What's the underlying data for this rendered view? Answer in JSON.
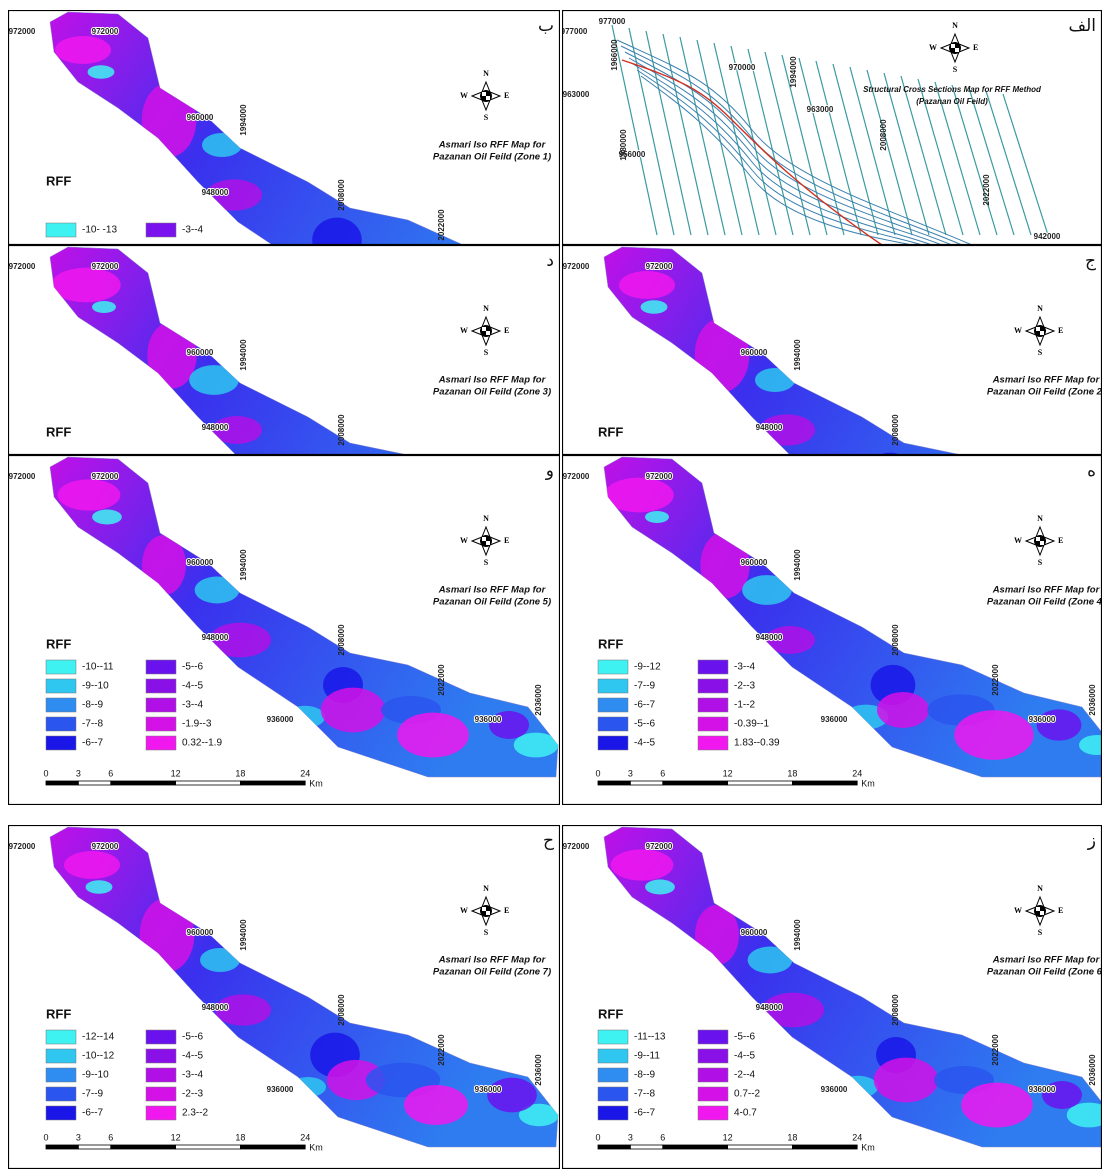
{
  "panels": [
    {
      "letter": "ب",
      "title": [
        "Asmari Iso RFF Map for",
        "Pazanan Oil Feild (Zone 1)"
      ],
      "compass": [
        "N",
        "S",
        "W",
        "E"
      ],
      "coords": [
        "972000",
        "972000",
        "960000",
        "1994000",
        "948000",
        "2008000",
        "2022000"
      ],
      "legend": {
        "title": "RFF",
        "items": [
          {
            "label": "-10- -13",
            "color": "#3ef2f2"
          },
          {
            "label": "-3--4",
            "color": "#7a12ee"
          }
        ]
      }
    },
    {
      "letter": "الف",
      "title": [
        "Structural Cross Sections Map for RFF Method",
        "(Pazanan Oil Feild)"
      ],
      "compass": [
        "N",
        "S",
        "W",
        "E"
      ],
      "coords": [
        "977000",
        "977000",
        "970000",
        "963000",
        "963000",
        "956000",
        "1966000",
        "1994000",
        "2008000",
        "2022000",
        "1980000",
        "942000"
      ]
    },
    {
      "letter": "د",
      "title": [
        "Asmari Iso RFF Map for",
        "Pazanan Oil Feild (Zone 3)"
      ],
      "compass": [
        "N",
        "S",
        "W",
        "E"
      ],
      "coords": [
        "972000",
        "972000",
        "960000",
        "1994000",
        "948000",
        "2008000"
      ],
      "legend": {
        "title": "RFF",
        "items": []
      }
    },
    {
      "letter": "ج",
      "title": [
        "Asmari Iso RFF Map for",
        "Pazanan Oil Feild (Zone 2)"
      ],
      "compass": [
        "N",
        "S",
        "W",
        "E"
      ],
      "coords": [
        "972000",
        "972000",
        "960000",
        "1994000",
        "948000",
        "2008000"
      ],
      "legend": {
        "title": "RFF",
        "items": []
      }
    },
    {
      "letter": "و",
      "title": [
        "Asmari Iso RFF Map for",
        "Pazanan Oil Feild (Zone 5)"
      ],
      "compass": [
        "N",
        "S",
        "W",
        "E"
      ],
      "coords": [
        "972000",
        "972000",
        "960000",
        "1994000",
        "948000",
        "2008000",
        "936000",
        "2022000",
        "936000",
        "2036000"
      ],
      "legend": {
        "title": "RFF",
        "items": [
          {
            "label": "-10--11",
            "color": "#3ef2f2"
          },
          {
            "label": "-9--10",
            "color": "#2fc6f0"
          },
          {
            "label": "-8--9",
            "color": "#2f8cf0"
          },
          {
            "label": "-7--8",
            "color": "#2a55ee"
          },
          {
            "label": "-6--7",
            "color": "#1a16e8"
          },
          {
            "label": "-5--6",
            "color": "#6a12ee"
          },
          {
            "label": "-4--5",
            "color": "#8a10e8"
          },
          {
            "label": "-3--4",
            "color": "#b010e6"
          },
          {
            "label": "-1.9--3",
            "color": "#d412e8"
          },
          {
            "label": "0.32--1.9",
            "color": "#f018ee"
          }
        ]
      },
      "scale": [
        "0",
        "3",
        "6",
        "12",
        "18",
        "24",
        "Km"
      ]
    },
    {
      "letter": "ه",
      "title": [
        "Asmari Iso RFF Map for",
        "Pazanan Oil Feild (Zone 4)"
      ],
      "compass": [
        "N",
        "S",
        "W",
        "E"
      ],
      "coords": [
        "972000",
        "972000",
        "960000",
        "1994000",
        "948000",
        "2008000",
        "936000",
        "2022000",
        "936000",
        "2036000"
      ],
      "legend": {
        "title": "RFF",
        "items": [
          {
            "label": "-9--12",
            "color": "#3ef2f2"
          },
          {
            "label": "-7--9",
            "color": "#2fc6f0"
          },
          {
            "label": "-6--7",
            "color": "#2f8cf0"
          },
          {
            "label": "-5--6",
            "color": "#2a55ee"
          },
          {
            "label": "-4--5",
            "color": "#1a16e8"
          },
          {
            "label": "-3--4",
            "color": "#6a12ee"
          },
          {
            "label": "-2--3",
            "color": "#8a10e8"
          },
          {
            "label": "-1--2",
            "color": "#b010e6"
          },
          {
            "label": "-0.39--1",
            "color": "#d412e8"
          },
          {
            "label": "1.83--0.39",
            "color": "#f018ee"
          }
        ]
      },
      "scale": [
        "0",
        "3",
        "6",
        "12",
        "18",
        "24",
        "Km"
      ]
    },
    {
      "letter": "ح",
      "title": [
        "Asmari Iso RFF Map for",
        "Pazanan Oil Feild (Zone 7)"
      ],
      "compass": [
        "N",
        "S",
        "W",
        "E"
      ],
      "coords": [
        "972000",
        "972000",
        "960000",
        "1994000",
        "948000",
        "2008000",
        "936000",
        "2022000",
        "936000",
        "2036000"
      ],
      "legend": {
        "title": "RFF",
        "items": [
          {
            "label": "-12--14",
            "color": "#3ef2f2"
          },
          {
            "label": "-10--12",
            "color": "#2fc6f0"
          },
          {
            "label": "-9--10",
            "color": "#2f8cf0"
          },
          {
            "label": "-7--9",
            "color": "#2a55ee"
          },
          {
            "label": "-6--7",
            "color": "#1a16e8"
          },
          {
            "label": "-5--6",
            "color": "#6a12ee"
          },
          {
            "label": "-4--5",
            "color": "#8a10e8"
          },
          {
            "label": "-3--4",
            "color": "#b010e6"
          },
          {
            "label": "-2--3",
            "color": "#d412e8"
          },
          {
            "label": "2.3--2",
            "color": "#f018ee"
          }
        ]
      },
      "scale": [
        "0",
        "3",
        "6",
        "12",
        "18",
        "24",
        "Km"
      ]
    },
    {
      "letter": "ز",
      "title": [
        "Asmari Iso RFF Map for",
        "Pazanan Oil Feild (Zone 6)"
      ],
      "compass": [
        "N",
        "S",
        "W",
        "E"
      ],
      "coords": [
        "972000",
        "972000",
        "960000",
        "1994000",
        "948000",
        "2008000",
        "936000",
        "2022000",
        "936000",
        "2036000"
      ],
      "legend": {
        "title": "RFF",
        "items": [
          {
            "label": "-11--13",
            "color": "#3ef2f2"
          },
          {
            "label": "-9--11",
            "color": "#2fc6f0"
          },
          {
            "label": "-8--9",
            "color": "#2f8cf0"
          },
          {
            "label": "-7--8",
            "color": "#2a55ee"
          },
          {
            "label": "-6--7",
            "color": "#1a16e8"
          },
          {
            "label": "-5--6",
            "color": "#6a12ee"
          },
          {
            "label": "-4--5",
            "color": "#8a10e8"
          },
          {
            "label": "-2--4",
            "color": "#b010e6"
          },
          {
            "label": "0.7--2",
            "color": "#d412e8"
          },
          {
            "label": "4-0.7",
            "color": "#f018ee"
          }
        ]
      },
      "scale": [
        "0",
        "3",
        "6",
        "12",
        "18",
        "24",
        "Km"
      ]
    }
  ]
}
